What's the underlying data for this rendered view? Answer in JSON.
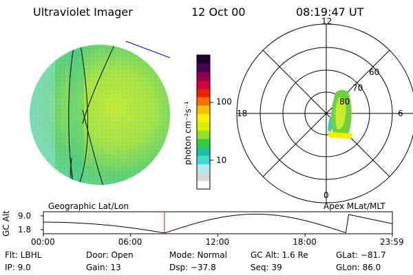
{
  "header": {
    "instrument": "Ultraviolet Imager",
    "date": "12 Oct 00",
    "time": "08:19:47 UT"
  },
  "colorbar": {
    "unit_label": "photon cm⁻²s⁻¹",
    "ticks": [
      "100",
      "10"
    ],
    "colors": [
      "#ffffff",
      "#d8d8d8",
      "#b0e8f0",
      "#40d8d8",
      "#20c0a0",
      "#30d040",
      "#90e030",
      "#d8f000",
      "#f8f000",
      "#f8c000",
      "#f87000",
      "#f02000",
      "#d00040",
      "#900050",
      "#500050",
      "#200030"
    ]
  },
  "left_panel": {
    "caption": "Geographic Lat/Lon"
  },
  "right_panel": {
    "caption": "Apex MLat/MLT",
    "mlt_labels": {
      "top": "12",
      "left": "18",
      "right": "6",
      "bottom": "0"
    },
    "lat_labels": [
      "60",
      "70",
      "80"
    ]
  },
  "timeline": {
    "ylabel": "GC Alt",
    "ytick_high": "9.0",
    "ytick_low": "1.8",
    "xticks": [
      "00:00",
      "06:00",
      "12:00",
      "18:00",
      "23:59"
    ],
    "current_fraction": 0.347
  },
  "info": {
    "row1": [
      "Flt: LBHL",
      "Door: Open",
      "Mode: Normal",
      "GC Alt: 1.6 Re",
      "GLat: −81.7"
    ],
    "row2": [
      "IP: 9.0",
      "Gain: 13",
      "Dsp: −37.8",
      "Seq: 39",
      "GLon: 86.0"
    ]
  },
  "colors": {
    "disk_green": "#5ad06a",
    "aurora_yellow": "#f0f000",
    "marker_red": "#d02000",
    "limb_line_blue": "#0000d0"
  }
}
